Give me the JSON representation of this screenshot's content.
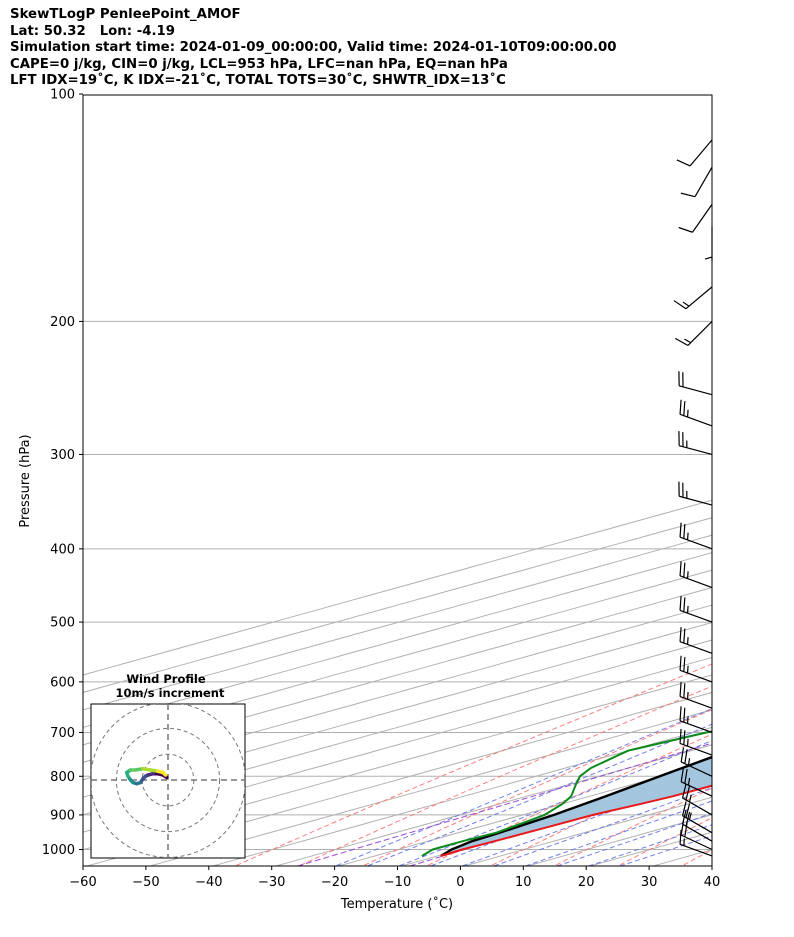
{
  "header": {
    "line1": "SkewTLogP PenleePoint_AMOF",
    "line2": "Lat: 50.32   Lon: -4.19",
    "line3": "Simulation start time: 2024-01-09_00:00:00, Valid time: 2024-01-10T09:00:00.00",
    "line4": "CAPE=0 j/kg, CIN=0 j/kg, LCL=953 hPa, LFC=nan hPa, EQ=nan hPa",
    "line5": "LFT IDX=19˚C, K IDX=-21˚C, TOTAL TOTS=30˚C, SHWTR_IDX=13˚C"
  },
  "colors": {
    "temperature": "#e8191b",
    "dewpoint": "#0a8a1a",
    "parcel": "#000000",
    "shading": "#a3c5de",
    "dry_adiabat": "#ff7070",
    "moist_adiabat": "#6a78ee",
    "mixing_ratio": "#9a4bd6",
    "isotherm": "#b0b0b0"
  },
  "chart_data": [
    {
      "type": "line",
      "title": "",
      "xlabel": "Temperature (˚C)",
      "ylabel": "Pressure (hPa)",
      "x_scale": "skewed",
      "y_scale": "log",
      "xlim": [
        -60,
        40
      ],
      "ylim": [
        1050,
        100
      ],
      "x_ticks": [
        "−60",
        "−50",
        "−40",
        "−30",
        "−20",
        "−10",
        "0",
        "10",
        "20",
        "30",
        "40"
      ],
      "y_ticks": [
        "1000",
        "900",
        "800",
        "700",
        "600",
        "500",
        "400",
        "300",
        "200",
        "100"
      ],
      "grid": true,
      "series": [
        {
          "key": "temperature",
          "points": [
            [
              1020,
              0.5
            ],
            [
              1000,
              0.2
            ],
            [
              975,
              0.6
            ],
            [
              950,
              0.8
            ],
            [
              930,
              1.0
            ],
            [
              900,
              1.2
            ],
            [
              870,
              2.5
            ],
            [
              850,
              3.2
            ],
            [
              800,
              3.5
            ],
            [
              750,
              2.8
            ],
            [
              700,
              1.5
            ],
            [
              650,
              -0.5
            ],
            [
              600,
              -2.5
            ],
            [
              550,
              -4.5
            ],
            [
              500,
              -7.5
            ],
            [
              450,
              -11
            ],
            [
              400,
              -15.5
            ],
            [
              375,
              -18.5
            ],
            [
              350,
              -21.5
            ],
            [
              325,
              -25
            ],
            [
              300,
              -29.5
            ],
            [
              280,
              -34
            ],
            [
              265,
              -39.5
            ],
            [
              250,
              -47
            ],
            [
              235,
              -53
            ],
            [
              215,
              -57.5
            ],
            [
              200,
              -61.5
            ],
            [
              185,
              -67
            ],
            [
              170,
              -71
            ],
            [
              160,
              -77
            ],
            [
              150,
              -83
            ],
            [
              140,
              -88
            ],
            [
              130,
              -91.5
            ],
            [
              120,
              -96
            ],
            [
              110,
              -101
            ],
            [
              100,
              -103
            ]
          ]
        },
        {
          "key": "dewpoint",
          "points": [
            [
              1020,
              -2.5
            ],
            [
              1000,
              -4.5
            ],
            [
              975,
              -4.5
            ],
            [
              950,
              -4.0
            ],
            [
              900,
              -6.5
            ],
            [
              870,
              -10
            ],
            [
              850,
              -13
            ],
            [
              820,
              -19
            ],
            [
              800,
              -23
            ],
            [
              780,
              -26
            ],
            [
              740,
              -30
            ],
            [
              700,
              -28
            ],
            [
              650,
              -21
            ],
            [
              600,
              -18
            ],
            [
              550,
              -19
            ],
            [
              500,
              -21.5
            ],
            [
              450,
              -25
            ],
            [
              400,
              -30
            ],
            [
              375,
              -34
            ],
            [
              350,
              -38
            ],
            [
              325,
              -42
            ],
            [
              300,
              -46
            ],
            [
              280,
              -51
            ],
            [
              260,
              -56
            ],
            [
              230,
              -63
            ],
            [
              200,
              -67
            ],
            [
              190,
              -69
            ],
            [
              170,
              -72
            ],
            [
              155,
              -75
            ],
            [
              140,
              -78
            ],
            [
              120,
              -84
            ],
            [
              100,
              -92
            ]
          ]
        },
        {
          "key": "parcel",
          "points": [
            [
              1020,
              0.5
            ],
            [
              1000,
              -1.5
            ],
            [
              975,
              -3.0
            ],
            [
              953,
              -3.4
            ],
            [
              900,
              -5.0
            ],
            [
              850,
              -7.5
            ],
            [
              800,
              -10.3
            ],
            [
              700,
              -16.5
            ],
            [
              600,
              -23.5
            ],
            [
              500,
              -32.0
            ],
            [
              400,
              -43.0
            ],
            [
              300,
              -57.0
            ],
            [
              250,
              -66.0
            ],
            [
              200,
              -76.5
            ],
            [
              150,
              -89.0
            ],
            [
              100,
              -106.0
            ]
          ]
        }
      ],
      "wind_barbs": [
        {
          "p": 1020,
          "speed": 15,
          "dir": 290
        },
        {
          "p": 1000,
          "speed": 20,
          "dir": 295
        },
        {
          "p": 975,
          "speed": 20,
          "dir": 300
        },
        {
          "p": 950,
          "speed": 25,
          "dir": 300
        },
        {
          "p": 900,
          "speed": 25,
          "dir": 300
        },
        {
          "p": 850,
          "speed": 25,
          "dir": 295
        },
        {
          "p": 800,
          "speed": 25,
          "dir": 295
        },
        {
          "p": 750,
          "speed": 25,
          "dir": 290
        },
        {
          "p": 700,
          "speed": 25,
          "dir": 290
        },
        {
          "p": 650,
          "speed": 25,
          "dir": 290
        },
        {
          "p": 600,
          "speed": 25,
          "dir": 290
        },
        {
          "p": 550,
          "speed": 25,
          "dir": 290
        },
        {
          "p": 500,
          "speed": 25,
          "dir": 290
        },
        {
          "p": 450,
          "speed": 25,
          "dir": 290
        },
        {
          "p": 400,
          "speed": 25,
          "dir": 290
        },
        {
          "p": 350,
          "speed": 25,
          "dir": 285
        },
        {
          "p": 300,
          "speed": 25,
          "dir": 285
        },
        {
          "p": 275,
          "speed": 25,
          "dir": 290
        },
        {
          "p": 250,
          "speed": 20,
          "dir": 285
        },
        {
          "p": 200,
          "speed": 15,
          "dir": 225
        },
        {
          "p": 180,
          "speed": 15,
          "dir": 230
        },
        {
          "p": 150,
          "speed": 5,
          "dir": 180
        },
        {
          "p": 140,
          "speed": 10,
          "dir": 215
        },
        {
          "p": 125,
          "speed": 10,
          "dir": 210
        },
        {
          "p": 115,
          "speed": 10,
          "dir": 220
        }
      ]
    },
    {
      "type": "line",
      "title": "Wind Profile\n10m/s increment",
      "xlabel": "",
      "ylabel": "",
      "rings": [
        10,
        20,
        30
      ],
      "x": [
        -1,
        -4,
        -8,
        -12,
        -16,
        -18,
        -20,
        -22,
        -25,
        -28,
        -30,
        -32,
        -33,
        -30,
        -26,
        -20,
        -14,
        -8,
        -4,
        -2
      ],
      "y": [
        2,
        4,
        5,
        5,
        4,
        3,
        1,
        -2,
        -3,
        -2,
        0,
        3,
        6,
        8,
        8,
        9,
        8,
        7,
        6,
        4
      ]
    }
  ]
}
